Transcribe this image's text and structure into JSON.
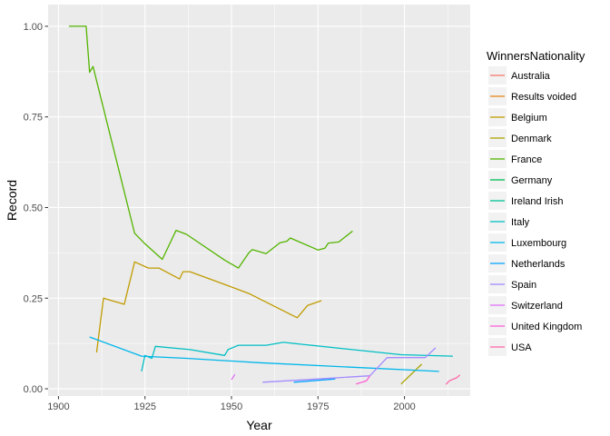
{
  "chart_data": {
    "type": "line",
    "title": "",
    "xlabel": "Year",
    "ylabel": "Record",
    "xlim": [
      1897,
      2019
    ],
    "ylim": [
      -0.02,
      1.06
    ],
    "x_ticks": [
      1900,
      1925,
      1950,
      1975,
      2000
    ],
    "y_ticks": [
      0.0,
      0.25,
      0.5,
      0.75,
      1.0
    ],
    "y_tick_labels": [
      "0.00",
      "0.25",
      "0.50",
      "0.75",
      "1.00"
    ],
    "grid": true,
    "legend_title": "WinnersNationality",
    "legend_position": "right",
    "series": [
      {
        "name": "Australia",
        "color": "#F8766D",
        "points": []
      },
      {
        "name": "Results voided",
        "color": "#E7861B",
        "points": []
      },
      {
        "name": "Belgium",
        "color": "#C09B00",
        "points": [
          [
            1911,
            0.1
          ],
          [
            1913,
            0.25
          ],
          [
            1919,
            0.233
          ],
          [
            1922,
            0.35
          ],
          [
            1926,
            0.333
          ],
          [
            1929,
            0.333
          ],
          [
            1935,
            0.303
          ],
          [
            1936,
            0.323
          ],
          [
            1938,
            0.323
          ],
          [
            1948,
            0.288
          ],
          [
            1955,
            0.263
          ],
          [
            1969,
            0.196
          ],
          [
            1972,
            0.23
          ],
          [
            1976,
            0.243
          ]
        ]
      },
      {
        "name": "Denmark",
        "color": "#AAA300",
        "points": [
          [
            1999,
            0.013
          ],
          [
            2005,
            0.068
          ]
        ]
      },
      {
        "name": "France",
        "color": "#53B400",
        "points": [
          [
            1903,
            1.0
          ],
          [
            1908,
            1.0
          ],
          [
            1909,
            0.873
          ],
          [
            1910,
            0.889
          ],
          [
            1922,
            0.429
          ],
          [
            1925,
            0.4
          ],
          [
            1930,
            0.357
          ],
          [
            1934,
            0.437
          ],
          [
            1937,
            0.426
          ],
          [
            1948,
            0.355
          ],
          [
            1952,
            0.333
          ],
          [
            1955,
            0.375
          ],
          [
            1956,
            0.384
          ],
          [
            1960,
            0.373
          ],
          [
            1964,
            0.403
          ],
          [
            1966,
            0.407
          ],
          [
            1967,
            0.416
          ],
          [
            1975,
            0.383
          ],
          [
            1977,
            0.388
          ],
          [
            1978,
            0.402
          ],
          [
            1981,
            0.405
          ],
          [
            1985,
            0.435
          ]
        ]
      },
      {
        "name": "Germany",
        "color": "#00BC56",
        "points": []
      },
      {
        "name": "Ireland Irish",
        "color": "#00C094",
        "points": []
      },
      {
        "name": "Italy",
        "color": "#00BFC4",
        "points": [
          [
            1924,
            0.048
          ],
          [
            1925,
            0.092
          ],
          [
            1927,
            0.084
          ],
          [
            1928,
            0.117
          ],
          [
            1938,
            0.108
          ],
          [
            1948,
            0.092
          ],
          [
            1949,
            0.108
          ],
          [
            1952,
            0.12
          ],
          [
            1960,
            0.12
          ],
          [
            1965,
            0.128
          ],
          [
            1999,
            0.094
          ],
          [
            2014,
            0.09
          ]
        ]
      },
      {
        "name": "Luxembourg",
        "color": "#00B6EB",
        "points": [
          [
            1909,
            0.143
          ],
          [
            1924,
            0.09
          ],
          [
            1937,
            0.084
          ],
          [
            1958,
            0.072
          ],
          [
            2010,
            0.048
          ]
        ]
      },
      {
        "name": "Netherlands",
        "color": "#06A4FF",
        "points": [
          [
            1968,
            0.018
          ],
          [
            1980,
            0.027
          ]
        ]
      },
      {
        "name": "Spain",
        "color": "#A58AFF",
        "points": [
          [
            1959,
            0.018
          ],
          [
            1990,
            0.036
          ],
          [
            1995,
            0.086
          ],
          [
            2006,
            0.086
          ],
          [
            2009,
            0.113
          ]
        ]
      },
      {
        "name": "Switzerland",
        "color": "#DF70F8",
        "points": [
          [
            1950,
            0.025
          ],
          [
            1951,
            0.04
          ]
        ]
      },
      {
        "name": "United Kingdom",
        "color": "#FB61D7",
        "points": [
          [
            1986,
            0.013
          ],
          [
            1989,
            0.022
          ],
          [
            1990,
            0.036
          ]
        ]
      },
      {
        "name": "USA",
        "color": "#FF66A8",
        "points": [
          [
            2012,
            0.012
          ],
          [
            2013,
            0.022
          ],
          [
            2015,
            0.03
          ],
          [
            2016,
            0.038
          ]
        ]
      }
    ]
  }
}
